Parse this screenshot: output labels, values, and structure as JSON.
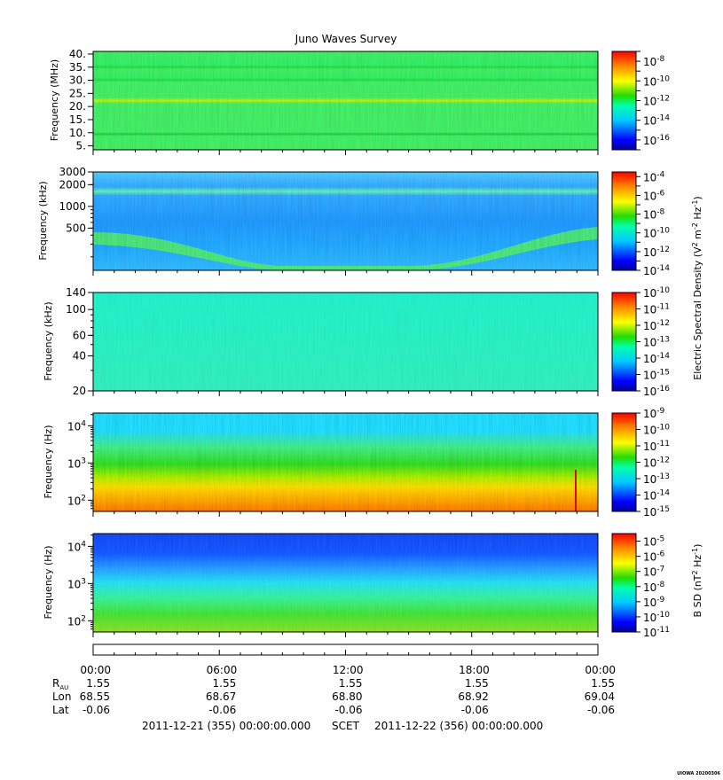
{
  "title": "Juno Waves Survey",
  "credit": "UIOWA 20200306",
  "chart_data": [
    {
      "type": "heatmap",
      "ylabel": "Frequency (MHz)",
      "yscale": "linear",
      "ylim": [
        3.5,
        41
      ],
      "yticks": [
        {
          "v": 40,
          "l": "40."
        },
        {
          "v": 35,
          "l": "35."
        },
        {
          "v": 30,
          "l": "30."
        },
        {
          "v": 25,
          "l": "25."
        },
        {
          "v": 20,
          "l": "20."
        },
        {
          "v": 15,
          "l": "15."
        },
        {
          "v": 10,
          "l": "10."
        },
        {
          "v": 5,
          "l": "5."
        }
      ],
      "colorbar": {
        "min_exp": -17,
        "max_exp": -7,
        "labels": [
          {
            "e": -8,
            "l": "-8"
          },
          {
            "e": -10,
            "l": "-10"
          },
          {
            "e": -12,
            "l": "-12"
          },
          {
            "e": -14,
            "l": "-14"
          },
          {
            "e": -16,
            "l": "-16"
          }
        ]
      }
    },
    {
      "type": "heatmap",
      "ylabel": "Frequency (kHz)",
      "yscale": "log",
      "ylim": [
        130,
        3000
      ],
      "yticks": [
        {
          "v": 3000,
          "l": "3000"
        },
        {
          "v": 2000,
          "l": "2000"
        },
        {
          "v": 1000,
          "l": "1000"
        },
        {
          "v": 500,
          "l": "500"
        }
      ],
      "colorbar": {
        "min_exp": -14,
        "max_exp": -3.5,
        "labels": [
          {
            "e": -4,
            "l": "-4"
          },
          {
            "e": -6,
            "l": "-6"
          },
          {
            "e": -8,
            "l": "-8"
          },
          {
            "e": -10,
            "l": "-10"
          },
          {
            "e": -12,
            "l": "-12"
          },
          {
            "e": -14,
            "l": "-14"
          }
        ]
      }
    },
    {
      "type": "heatmap",
      "ylabel": "Frequency (kHz)",
      "yscale": "log",
      "ylim": [
        20,
        140
      ],
      "yticks": [
        {
          "v": 140,
          "l": "140"
        },
        {
          "v": 100,
          "l": "100"
        },
        {
          "v": 60,
          "l": "60"
        },
        {
          "v": 40,
          "l": "40"
        },
        {
          "v": 20,
          "l": "20"
        }
      ],
      "colorbar": {
        "min_exp": -16,
        "max_exp": -10,
        "labels": [
          {
            "e": -10,
            "l": "-10"
          },
          {
            "e": -11,
            "l": "-11"
          },
          {
            "e": -12,
            "l": "-12"
          },
          {
            "e": -13,
            "l": "-13"
          },
          {
            "e": -14,
            "l": "-14"
          },
          {
            "e": -15,
            "l": "-15"
          },
          {
            "e": -16,
            "l": "-16"
          }
        ]
      }
    },
    {
      "type": "heatmap",
      "ylabel": "Frequency (Hz)",
      "yscale": "log",
      "ylim": [
        50,
        22000
      ],
      "yticks": [
        {
          "v": 10000,
          "b": "10",
          "e": "4"
        },
        {
          "v": 1000,
          "b": "10",
          "e": "3"
        },
        {
          "v": 100,
          "b": "10",
          "e": "2"
        }
      ],
      "colorbar": {
        "min_exp": -15,
        "max_exp": -9,
        "labels": [
          {
            "e": -9,
            "l": "-9"
          },
          {
            "e": -10,
            "l": "-10"
          },
          {
            "e": -11,
            "l": "-11"
          },
          {
            "e": -12,
            "l": "-12"
          },
          {
            "e": -13,
            "l": "-13"
          },
          {
            "e": -14,
            "l": "-14"
          },
          {
            "e": -15,
            "l": "-15"
          }
        ]
      }
    },
    {
      "type": "heatmap",
      "ylabel": "Frequency (Hz)",
      "yscale": "log",
      "ylim": [
        50,
        22000
      ],
      "yticks": [
        {
          "v": 10000,
          "b": "10",
          "e": "4"
        },
        {
          "v": 1000,
          "b": "10",
          "e": "3"
        },
        {
          "v": 100,
          "b": "10",
          "e": "2"
        }
      ],
      "colorbar": {
        "min_exp": -11,
        "max_exp": -4.5,
        "labels": [
          {
            "e": -5,
            "l": "-5"
          },
          {
            "e": -6,
            "l": "-6"
          },
          {
            "e": -7,
            "l": "-7"
          },
          {
            "e": -8,
            "l": "-8"
          },
          {
            "e": -9,
            "l": "-9"
          },
          {
            "e": -10,
            "l": "-10"
          },
          {
            "e": -11,
            "l": "-11"
          }
        ]
      }
    }
  ],
  "colorbar_labels": {
    "e_field": {
      "main": "Electric Spectral Density (V",
      "p1": "2",
      "mid": " m",
      "p2": "-2",
      "mid2": " Hz",
      "p3": "-1",
      "end": ")"
    },
    "b_field": {
      "main": "B SD (nT",
      "p1": "2",
      "mid": " Hz",
      "p2": "-1",
      "end": ")"
    }
  },
  "time_axis": {
    "ticks": [
      "00:00",
      "06:00",
      "12:00",
      "18:00",
      "00:00"
    ],
    "rows": [
      {
        "label": "R",
        "sub": "AU",
        "values": [
          "1.55",
          "1.55",
          "1.55",
          "1.55",
          "1.55"
        ]
      },
      {
        "label": "Lon",
        "sub": "",
        "values": [
          "68.55",
          "68.67",
          "68.80",
          "68.92",
          "69.04"
        ]
      },
      {
        "label": "Lat",
        "sub": "",
        "values": [
          "-0.06",
          "-0.06",
          "-0.06",
          "-0.06",
          "-0.06"
        ]
      }
    ],
    "start": "2011-12-21 (355) 00:00:00.000",
    "scet": "SCET",
    "end": "2011-12-22 (356) 00:00:00.000"
  }
}
